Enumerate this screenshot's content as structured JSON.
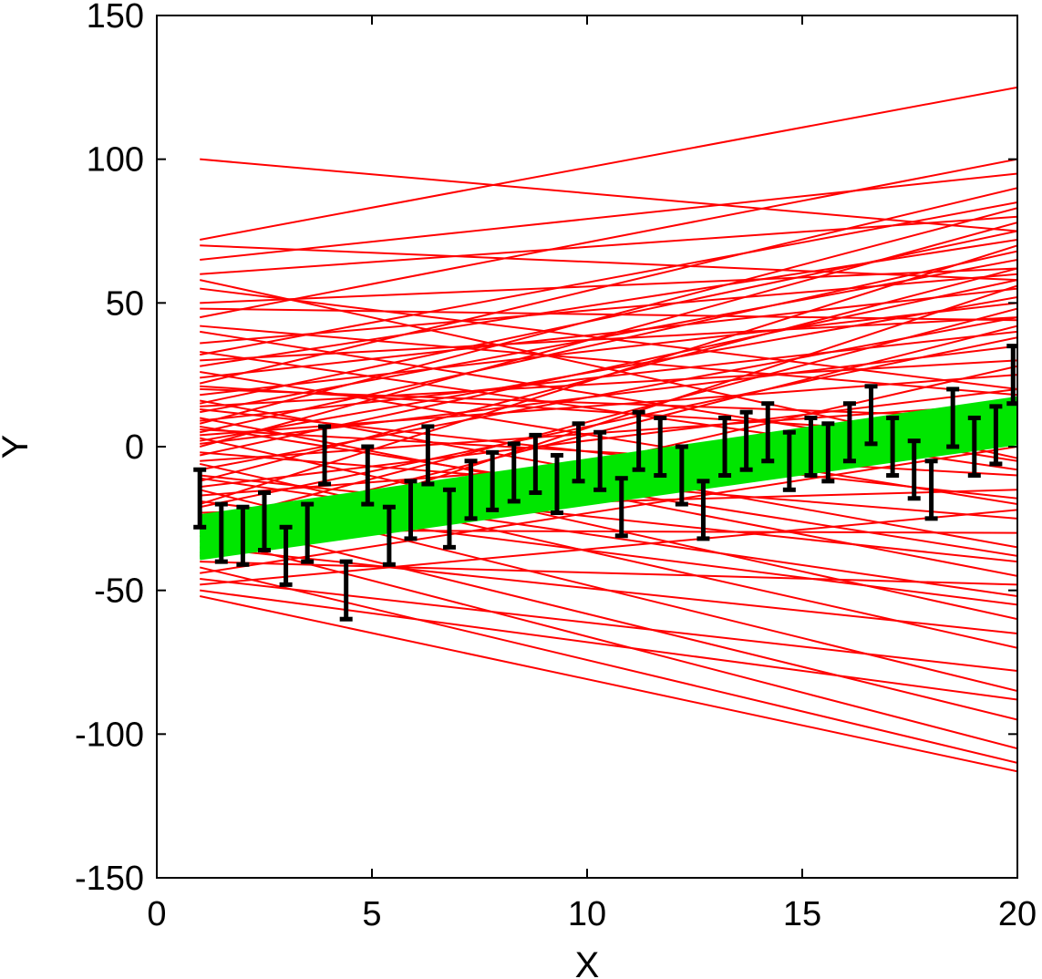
{
  "chart_data": {
    "type": "line",
    "xlabel": "X",
    "ylabel": "Y",
    "xlim": [
      0,
      20
    ],
    "ylim": [
      -150,
      150
    ],
    "xticks": [
      0,
      5,
      10,
      15,
      20
    ],
    "xtick_labels": [
      "0",
      "5",
      "10",
      "15",
      "20"
    ],
    "yticks": [
      -150,
      -100,
      -50,
      0,
      50,
      100,
      150
    ],
    "ytick_labels": [
      "-150",
      "-100",
      "-50",
      "0",
      "50",
      "100",
      "150"
    ],
    "grid": false,
    "legend": "none",
    "colors": {
      "prior_lines": "#ff0000",
      "posterior_lines": "#00e600",
      "data": "#000000"
    },
    "series": [
      {
        "role": "prior sample lines",
        "color": "#ff0000",
        "x_range": [
          1,
          20
        ],
        "lines": [
          [
            100,
            75
          ],
          [
            72,
            125
          ],
          [
            70,
            58
          ],
          [
            65,
            95
          ],
          [
            60,
            80
          ],
          [
            55,
            20
          ],
          [
            50,
            62
          ],
          [
            45,
            100
          ],
          [
            40,
            -5
          ],
          [
            36,
            60
          ],
          [
            32,
            85
          ],
          [
            30,
            45
          ],
          [
            28,
            72
          ],
          [
            26,
            -20
          ],
          [
            24,
            55
          ],
          [
            22,
            90
          ],
          [
            20,
            10
          ],
          [
            18,
            50
          ],
          [
            16,
            -35
          ],
          [
            15,
            75
          ],
          [
            14,
            30
          ],
          [
            12,
            65
          ],
          [
            10,
            -45
          ],
          [
            9,
            40
          ],
          [
            8,
            83
          ],
          [
            6,
            -10
          ],
          [
            5,
            68
          ],
          [
            4,
            25
          ],
          [
            3,
            -60
          ],
          [
            2,
            52
          ],
          [
            1,
            35
          ],
          [
            0,
            78
          ],
          [
            -2,
            -25
          ],
          [
            -3,
            58
          ],
          [
            -5,
            15
          ],
          [
            -6,
            -70
          ],
          [
            -8,
            45
          ],
          [
            -10,
            -40
          ],
          [
            -12,
            62
          ],
          [
            -14,
            20
          ],
          [
            -15,
            -85
          ],
          [
            -17,
            5
          ],
          [
            -19,
            -55
          ],
          [
            -21,
            38
          ],
          [
            -23,
            -15
          ],
          [
            -25,
            -95
          ],
          [
            -27,
            48
          ],
          [
            -29,
            -30
          ],
          [
            -31,
            -105
          ],
          [
            -33,
            10
          ],
          [
            -35,
            -65
          ],
          [
            -37,
            28
          ],
          [
            -40,
            -48
          ],
          [
            -42,
            -110
          ],
          [
            -44,
            0
          ],
          [
            -46,
            -78
          ],
          [
            -48,
            -22
          ],
          [
            -50,
            -88
          ],
          [
            -52,
            -113
          ],
          [
            -38,
            56
          ],
          [
            -30,
            42
          ],
          [
            -20,
            70
          ],
          [
            -11,
            -52
          ],
          [
            7,
            -38
          ],
          [
            13,
            -18
          ],
          [
            21,
            3
          ],
          [
            33,
            -8
          ],
          [
            42,
            18
          ],
          [
            48,
            44
          ],
          [
            58,
            -4
          ]
        ]
      },
      {
        "role": "posterior sample lines",
        "color": "#00e600",
        "x_range": [
          1,
          20
        ],
        "band_lower": [
          -39,
          1
        ],
        "band_upper": [
          -24,
          17
        ],
        "line_count": 30
      },
      {
        "role": "observed data with error bars",
        "color": "#000000",
        "error": 10,
        "points": [
          [
            1.0,
            -18
          ],
          [
            1.5,
            -30
          ],
          [
            2.0,
            -31
          ],
          [
            2.5,
            -26
          ],
          [
            3.0,
            -38
          ],
          [
            3.5,
            -30
          ],
          [
            3.9,
            -3
          ],
          [
            4.4,
            -50
          ],
          [
            4.9,
            -10
          ],
          [
            5.4,
            -31
          ],
          [
            5.9,
            -22
          ],
          [
            6.3,
            -3
          ],
          [
            6.8,
            -25
          ],
          [
            7.3,
            -15
          ],
          [
            7.8,
            -12
          ],
          [
            8.3,
            -9
          ],
          [
            8.8,
            -6
          ],
          [
            9.3,
            -13
          ],
          [
            9.8,
            -2
          ],
          [
            10.3,
            -5
          ],
          [
            10.8,
            -21
          ],
          [
            11.2,
            2
          ],
          [
            11.7,
            0
          ],
          [
            12.2,
            -10
          ],
          [
            12.7,
            -22
          ],
          [
            13.2,
            0
          ],
          [
            13.7,
            2
          ],
          [
            14.2,
            5
          ],
          [
            14.7,
            -5
          ],
          [
            15.2,
            0
          ],
          [
            15.6,
            -2
          ],
          [
            16.1,
            5
          ],
          [
            16.6,
            11
          ],
          [
            17.1,
            0
          ],
          [
            17.6,
            -8
          ],
          [
            18.0,
            -15
          ],
          [
            18.5,
            10
          ],
          [
            19.0,
            0
          ],
          [
            19.5,
            4
          ],
          [
            19.9,
            25
          ]
        ]
      }
    ]
  }
}
